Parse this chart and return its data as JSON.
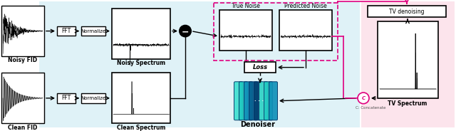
{
  "bg_left_color": "#dff2f7",
  "bg_right_color": "#fce4ec",
  "noisy_fid_label": "Noisy FID",
  "clean_fid_label": "Clean FID",
  "noisy_spectrum_label": "Noisy Spectrum",
  "clean_spectrum_label": "Clean Spectrum",
  "fft_label": "FFT",
  "normalize_label": "Normalize",
  "true_noise_label": "True Noise",
  "predicted_noise_label": "Predicted Noise",
  "loss_label": "Loss",
  "denoiser_label": "Denoiser",
  "tv_denoising_label": "TV denoising",
  "tv_spectrum_label": "TV Spectrum",
  "concatenate_label": "C: Concatenate",
  "arrow_color": "#000000",
  "pink_color": "#e0007f",
  "dashed_color": "#e0007f",
  "figsize": [
    6.4,
    1.84
  ],
  "denoiser_colors": [
    "#00e5d0",
    "#00c8be",
    "#00a8b4",
    "#006080",
    "#003d5c",
    "#00e5d0",
    "#00c8be",
    "#00a8b4",
    "#006080",
    "#003d5c"
  ]
}
